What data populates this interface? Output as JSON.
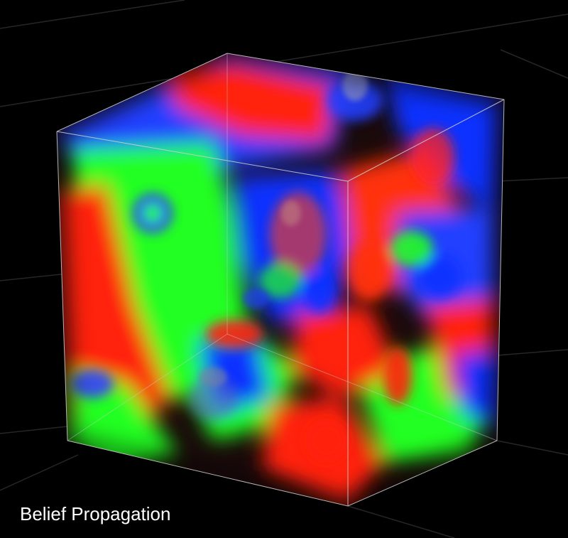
{
  "caption": "Belief Propagation",
  "palette": {
    "background": "#000000",
    "grid": "#2a2a2a",
    "cube_edge": "#d8d8d8",
    "red": "#ff1e10",
    "green": "#20ff20",
    "blue": "#1030ff",
    "caption_text": "#ffffff"
  }
}
